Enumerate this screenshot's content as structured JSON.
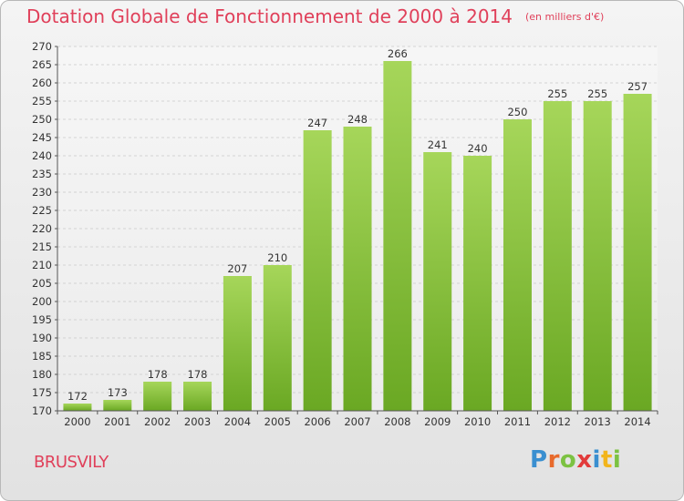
{
  "header": {
    "title": "Dotation Globale de Fonctionnement de 2000 à 2014",
    "subtitle": "(en milliers d'€)"
  },
  "footer": {
    "commune": "BRUSVILY",
    "logo_letters": [
      {
        "char": "P",
        "color": "#3a8fd0"
      },
      {
        "char": "r",
        "color": "#e86a2c"
      },
      {
        "char": "o",
        "color": "#7cc242"
      },
      {
        "char": "x",
        "color": "#e23b3b"
      },
      {
        "char": "i",
        "color": "#3a8fd0"
      },
      {
        "char": "t",
        "color": "#f2b51c"
      },
      {
        "char": "i",
        "color": "#7cc242"
      }
    ]
  },
  "chart_data": {
    "type": "bar",
    "title": "Dotation Globale de Fonctionnement de 2000 à 2014",
    "subtitle": "(en milliers d'€)",
    "categories": [
      "2000",
      "2001",
      "2002",
      "2003",
      "2004",
      "2005",
      "2006",
      "2007",
      "2008",
      "2009",
      "2010",
      "2011",
      "2012",
      "2013",
      "2014"
    ],
    "values": [
      172,
      173,
      178,
      178,
      207,
      210,
      247,
      248,
      266,
      241,
      240,
      250,
      255,
      255,
      257
    ],
    "ylim": [
      170,
      270
    ],
    "ytick_step": 5,
    "grid": true,
    "bar_color_top": "#a6d65a",
    "bar_color_bottom": "#6aa823"
  }
}
